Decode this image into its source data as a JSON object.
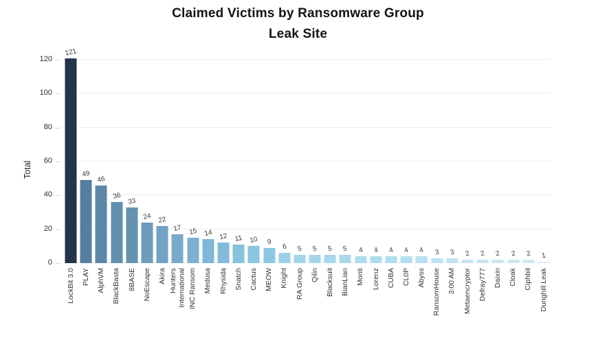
{
  "title": {
    "line1": "Claimed Victims by Ransomware Group",
    "line2": "Leak Site"
  },
  "chart_data": {
    "type": "bar",
    "title": "Claimed Victims by Ransomware Group Leak Site",
    "xlabel": "",
    "ylabel": "Total",
    "ylim": [
      0,
      126
    ],
    "yticks": [
      0,
      20,
      40,
      60,
      80,
      100,
      120
    ],
    "grid": true,
    "legend": false,
    "value_labels_shown": true,
    "categories": [
      "LockBit 3.0",
      "PLAY",
      "AlphVM",
      "BlackBasta",
      "8BASE",
      "NoEscape",
      "Akira",
      "Hunters International",
      "INC Ransom",
      "Medusa",
      "Rhysida",
      "Snatch",
      "Cactus",
      "MEOW",
      "Knight",
      "RA Group",
      "Qilin",
      "Blacksuit",
      "BianLian",
      "Monti",
      "Lorenz",
      "CUBA",
      "CL0P",
      "Abyss",
      "RansomHouse",
      "3:00 AM",
      "Metaencryptor",
      "Defray777",
      "Daixin",
      "Cloak",
      "Ciphbit",
      "Dunghill Leak"
    ],
    "values": [
      121,
      49,
      46,
      36,
      33,
      24,
      22,
      17,
      15,
      14,
      12,
      11,
      10,
      9,
      6,
      5,
      5,
      5,
      5,
      4,
      4,
      4,
      4,
      4,
      3,
      3,
      2,
      2,
      2,
      2,
      2,
      1
    ],
    "bar_colors": [
      "#243349",
      "#56809f",
      "#5c87a7",
      "#628fae",
      "#6592b1",
      "#6d9dbd",
      "#72a3c3",
      "#78abcc",
      "#7cb1d2",
      "#80b6d6",
      "#83bad9",
      "#87c2de",
      "#8ac5e1",
      "#8dc7e3",
      "#9dcfe7",
      "#a4d4ea",
      "#a6d5ea",
      "#a8d7eb",
      "#aad9ec",
      "#aedcee",
      "#b1ddee",
      "#b3deef",
      "#b5dfef",
      "#b7e0f0",
      "#bce2f1",
      "#bfe3f1",
      "#c4e5f2",
      "#c6e6f2",
      "#c8e7f3",
      "#cae8f4",
      "#cce9f4",
      "#d3ecf7"
    ]
  },
  "colors": {
    "background": "#ffffff",
    "gridline": "#ededed",
    "tick_dash": "#d6d6d6",
    "title_text": "#131318",
    "axis_text": "#2b2b30",
    "value_label_text": "#3a3a3e"
  }
}
